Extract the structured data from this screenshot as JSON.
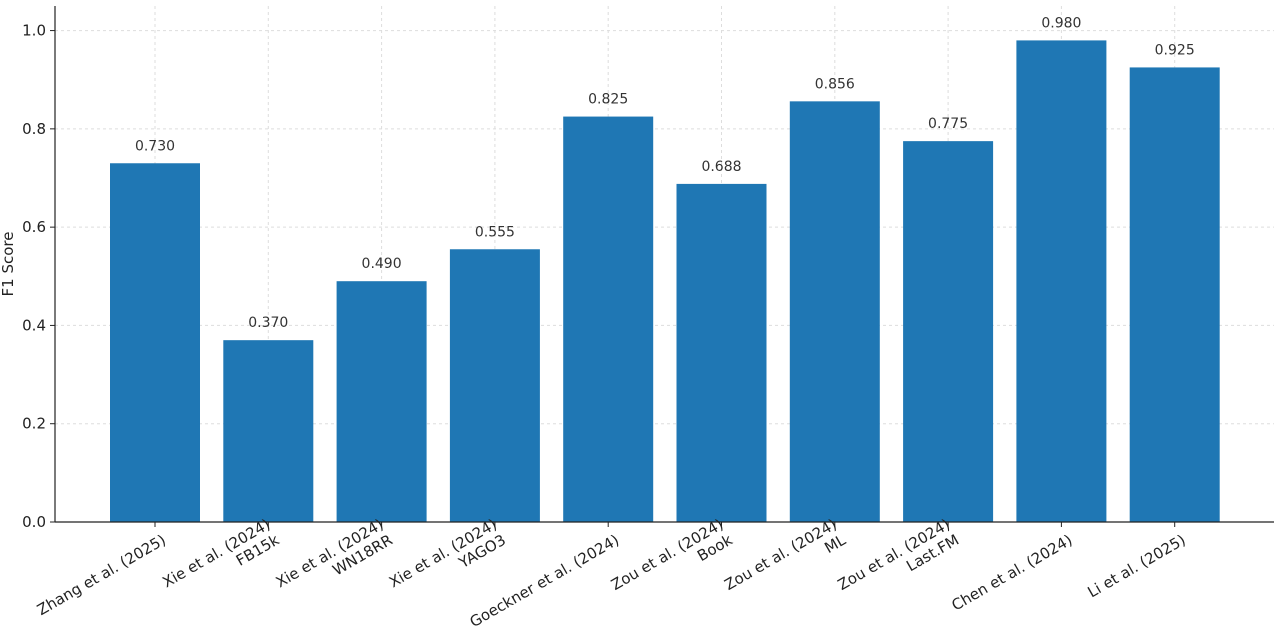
{
  "chart_data": {
    "type": "bar",
    "categories": [
      [
        "Zhang et al. (2025)"
      ],
      [
        "Xie et al. (2024)",
        "FB15k"
      ],
      [
        "Xie et al. (2024)",
        "WN18RR"
      ],
      [
        "Xie et al. (2024)",
        "YAGO3"
      ],
      [
        "Goeckner et al. (2024)"
      ],
      [
        "Zou et al. (2024)",
        "Book"
      ],
      [
        "Zou et al. (2024)",
        "ML"
      ],
      [
        "Zou et al. (2024)",
        "Last.FM"
      ],
      [
        "Chen et al. (2024)"
      ],
      [
        "Li et al. (2025)"
      ]
    ],
    "values": [
      0.73,
      0.37,
      0.49,
      0.555,
      0.825,
      0.688,
      0.856,
      0.775,
      0.98,
      0.925
    ],
    "value_labels": [
      "0.730",
      "0.370",
      "0.490",
      "0.555",
      "0.825",
      "0.688",
      "0.856",
      "0.775",
      "0.980",
      "0.925"
    ],
    "ylabel": "F1 Score",
    "xlabel": "",
    "title": "",
    "ylim": [
      0,
      1.05
    ],
    "yticks": [
      0.0,
      0.2,
      0.4,
      0.6,
      0.8,
      1.0
    ],
    "ytick_labels": [
      "0.0",
      "0.2",
      "0.4",
      "0.6",
      "0.8",
      "1.0"
    ],
    "grid": true,
    "bar_color": "#1f77b4",
    "grid_color": "#dddddd"
  }
}
